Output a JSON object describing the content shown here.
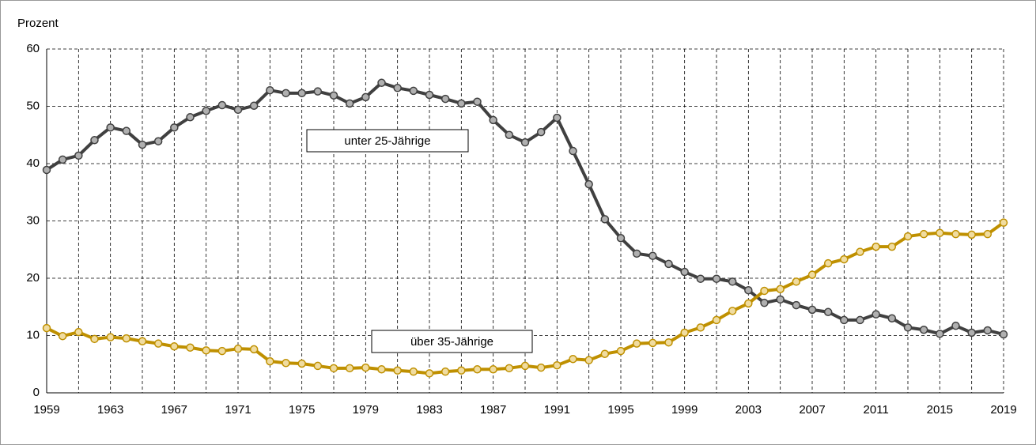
{
  "chart_data": {
    "type": "line",
    "y_label": "Prozent",
    "x": [
      1959,
      1960,
      1961,
      1962,
      1963,
      1964,
      1965,
      1966,
      1967,
      1968,
      1969,
      1970,
      1971,
      1972,
      1973,
      1974,
      1975,
      1976,
      1977,
      1978,
      1979,
      1980,
      1981,
      1982,
      1983,
      1984,
      1985,
      1986,
      1987,
      1988,
      1989,
      1990,
      1991,
      1992,
      1993,
      1994,
      1995,
      1996,
      1997,
      1998,
      1999,
      2000,
      2001,
      2002,
      2003,
      2004,
      2005,
      2006,
      2007,
      2008,
      2009,
      2010,
      2011,
      2012,
      2013,
      2014,
      2015,
      2016,
      2017,
      2018,
      2019
    ],
    "series": [
      {
        "name": "unter 25-Jährige",
        "color": "#404040",
        "marker_fill": "#b0b0b0",
        "values": [
          38.9,
          40.7,
          41.4,
          44.1,
          46.3,
          45.7,
          43.3,
          43.9,
          46.3,
          48.1,
          49.2,
          50.2,
          49.4,
          50.1,
          52.8,
          52.3,
          52.3,
          52.6,
          51.9,
          50.5,
          51.6,
          54.1,
          53.2,
          52.7,
          52.0,
          51.3,
          50.5,
          50.8,
          47.6,
          45.0,
          43.7,
          45.5,
          48.0,
          42.2,
          36.4,
          30.3,
          27.0,
          24.3,
          23.9,
          22.5,
          21.1,
          19.9,
          19.9,
          19.4,
          17.9,
          15.7,
          16.3,
          15.3,
          14.5,
          14.1,
          12.7,
          12.7,
          13.7,
          13.0,
          11.4,
          11.0,
          10.3,
          11.7,
          10.5,
          10.9,
          10.2
        ]
      },
      {
        "name": "über 35-Jährige",
        "color": "#bf9000",
        "marker_fill": "#f0dca0",
        "values": [
          11.3,
          9.9,
          10.6,
          9.4,
          9.7,
          9.5,
          9.0,
          8.6,
          8.1,
          7.9,
          7.4,
          7.3,
          7.7,
          7.6,
          5.5,
          5.2,
          5.1,
          4.7,
          4.3,
          4.3,
          4.4,
          4.1,
          3.9,
          3.7,
          3.4,
          3.7,
          3.9,
          4.1,
          4.1,
          4.3,
          4.7,
          4.4,
          4.8,
          5.9,
          5.7,
          6.8,
          7.3,
          8.6,
          8.7,
          8.8,
          10.5,
          11.4,
          12.7,
          14.3,
          15.6,
          17.8,
          18.1,
          19.4,
          20.6,
          22.6,
          23.3,
          24.6,
          25.5,
          25.5,
          27.3,
          27.7,
          27.9,
          27.7,
          27.6,
          27.7,
          29.7
        ]
      }
    ],
    "xlim": [
      1959,
      2019
    ],
    "xticks": [
      1959,
      1963,
      1967,
      1971,
      1975,
      1979,
      1983,
      1987,
      1991,
      1995,
      1999,
      2003,
      2007,
      2011,
      2015,
      2019
    ],
    "xminorticks": [
      1961,
      1965,
      1969,
      1973,
      1977,
      1981,
      1985,
      1989,
      1993,
      1997,
      2001,
      2005,
      2009,
      2013,
      2017
    ],
    "ylim": [
      0,
      60
    ],
    "yticks": [
      0,
      10,
      20,
      30,
      40,
      50,
      60
    ],
    "grid": true
  }
}
